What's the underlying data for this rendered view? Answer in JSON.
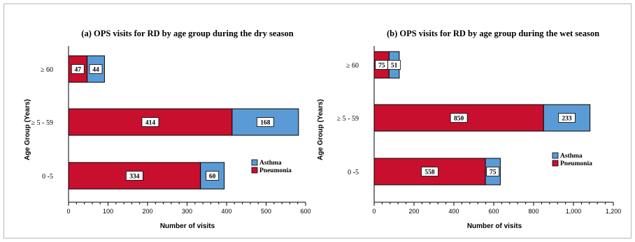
{
  "chart_data": [
    {
      "type": "bar",
      "orientation": "horizontal",
      "stacked": true,
      "title": "(a) OPS visits for RD by age group during the dry season",
      "xlabel": "Number of visits",
      "ylabel": "Age Group (Years)",
      "categories": [
        "≥ 60",
        "≥ 5 - 59",
        "0 -5"
      ],
      "series": [
        {
          "name": "Pneumonia",
          "values": [
            47,
            414,
            334
          ],
          "color": "#c8102e"
        },
        {
          "name": "Asthma",
          "values": [
            44,
            168,
            60
          ],
          "color": "#5b9bd5"
        }
      ],
      "xlim": [
        0,
        600
      ],
      "xticks": [
        0,
        100,
        200,
        300,
        400,
        500,
        600
      ],
      "xtick_labels": [
        "0",
        "100",
        "200",
        "300",
        "400",
        "500",
        "600"
      ],
      "legend": {
        "placement": "lower-right",
        "order": [
          "Asthma",
          "Pneumonia"
        ]
      }
    },
    {
      "type": "bar",
      "orientation": "horizontal",
      "stacked": true,
      "title": "(b) OPS visits for RD by age group during the wet season",
      "xlabel": "Number of visits",
      "ylabel": "Age Group (Years)",
      "categories": [
        "≥ 60",
        "≥ 5 - 59",
        "0 -5"
      ],
      "series": [
        {
          "name": "Pneumonia",
          "values": [
            75,
            850,
            558
          ],
          "color": "#c8102e"
        },
        {
          "name": "Asthma",
          "values": [
            51,
            233,
            75
          ],
          "color": "#5b9bd5"
        }
      ],
      "xlim": [
        0,
        1200
      ],
      "xticks": [
        0,
        200,
        400,
        600,
        800,
        1000,
        1200
      ],
      "xtick_labels": [
        "0",
        "200",
        "400",
        "600",
        "800",
        "1,000",
        "1,200"
      ],
      "legend": {
        "placement": "lower-right",
        "order": [
          "Asthma",
          "Pneumonia"
        ]
      }
    }
  ]
}
